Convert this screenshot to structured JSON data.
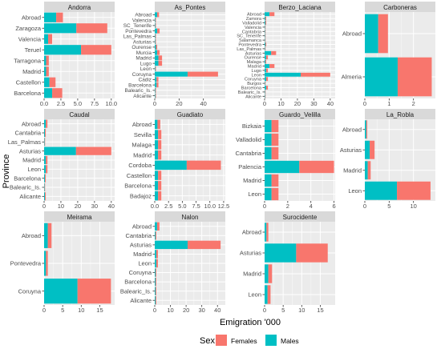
{
  "colors": {
    "females": "#F8766D",
    "males": "#00BFC4",
    "panel_bg": "#EBEBEB",
    "strip_bg": "#D9D9D9",
    "grid": "#FFFFFF",
    "text": "#4D4D4D"
  },
  "axis_labels": {
    "x": "Emigration '000",
    "y": "Province"
  },
  "legend": {
    "title": "Sex",
    "items": [
      {
        "name": "Females",
        "color": "#F8766D"
      },
      {
        "name": "Males",
        "color": "#00BFC4"
      }
    ]
  },
  "chart_data": [
    {
      "type": "bar",
      "orientation": "horizontal",
      "stacked": true,
      "title": "Andorra",
      "xlim": [
        0,
        10.5
      ],
      "xticks": [
        0,
        2.5,
        5,
        7.5,
        10
      ],
      "xtick_labels": [
        "0.0",
        "2.5",
        "5.0",
        "7.5",
        "10.0"
      ],
      "categories": [
        "Abroad",
        "Zaragoza",
        "Valencia",
        "Teruel",
        "Tarragona",
        "Madrid",
        "Castellon",
        "Barcelona"
      ],
      "series": [
        {
          "name": "Males",
          "values": [
            1.8,
            4.8,
            0.6,
            5.5,
            0.3,
            0.3,
            0.8,
            1.2
          ]
        },
        {
          "name": "Females",
          "values": [
            1.0,
            4.6,
            0.6,
            4.5,
            0.4,
            0.4,
            0.9,
            1.5
          ]
        }
      ]
    },
    {
      "type": "bar",
      "orientation": "horizontal",
      "stacked": true,
      "title": "As_Pontes",
      "xlim": [
        0,
        58
      ],
      "xticks": [
        0,
        20,
        40
      ],
      "xtick_labels": [
        "0",
        "20",
        "40"
      ],
      "categories": [
        "Abroad",
        "Valencia",
        "SC_Tenerife",
        "Pontevedra",
        "Las_Palmas",
        "Asturias",
        "Ourense",
        "Murcia",
        "Madrid",
        "Lugo",
        "Leon",
        "Coruyna",
        "Cadiz",
        "Barcelona",
        "Balearic_Is.",
        "Alicante"
      ],
      "series": [
        {
          "name": "Males",
          "values": [
            2,
            0.5,
            0.5,
            2,
            0.5,
            0.5,
            1,
            2,
            3,
            3,
            0.5,
            27,
            1.5,
            1.5,
            0.5,
            0.5
          ]
        },
        {
          "name": "Females",
          "values": [
            1.5,
            0.5,
            0.5,
            2,
            0.5,
            0.5,
            1,
            2,
            3,
            3,
            0.5,
            25,
            1.5,
            1.5,
            0.5,
            0.5
          ]
        }
      ]
    },
    {
      "type": "bar",
      "orientation": "horizontal",
      "stacked": true,
      "title": "Berzo_Laciana",
      "xlim": [
        0,
        43
      ],
      "xticks": [
        0,
        10,
        20,
        30,
        40
      ],
      "xtick_labels": [
        "0",
        "10",
        "20",
        "30",
        "40"
      ],
      "categories": [
        "Abroad",
        "Zamora",
        "Valladolid",
        "Valencia",
        "Cantabria",
        "SC_Tenerife",
        "Salamanca",
        "Pontevedra",
        "Las_Palmas",
        "Asturias",
        "Ourense",
        "Malaga",
        "Madrid",
        "Lugo",
        "Leon",
        "Coruyna",
        "Burgos",
        "Barcelona",
        "Balearic_Is.",
        "Alicante"
      ],
      "series": [
        {
          "name": "Males",
          "values": [
            3,
            0.5,
            0.5,
            0.3,
            0.3,
            0.3,
            0.3,
            0.5,
            0.3,
            4,
            1,
            0.5,
            3,
            1,
            22,
            1,
            0.3,
            1,
            0.3,
            0.3
          ]
        },
        {
          "name": "Females",
          "values": [
            3,
            0.5,
            0.5,
            0.3,
            0.3,
            0.3,
            0.3,
            0.5,
            0.3,
            3,
            1,
            0.5,
            3,
            1,
            18,
            1,
            0.3,
            1,
            0.3,
            0.3
          ]
        }
      ]
    },
    {
      "type": "bar",
      "orientation": "horizontal",
      "stacked": true,
      "title": "Carboneras",
      "xlim": [
        0,
        2.9
      ],
      "xticks": [
        0,
        1,
        2
      ],
      "xtick_labels": [
        "0",
        "1",
        "2"
      ],
      "categories": [
        "Abroad",
        "Almeria"
      ],
      "series": [
        {
          "name": "Males",
          "values": [
            0.55,
            1.35
          ]
        },
        {
          "name": "Females",
          "values": [
            0.4,
            1.4
          ]
        }
      ]
    },
    {
      "type": "bar",
      "orientation": "horizontal",
      "stacked": true,
      "title": "Caudal",
      "xlim": [
        0,
        42
      ],
      "xticks": [
        0,
        10,
        20,
        30,
        40
      ],
      "xtick_labels": [
        "0",
        "10",
        "20",
        "30",
        "40"
      ],
      "categories": [
        "Abroad",
        "Cantabria",
        "Las_Palmas",
        "Asturias",
        "Madrid",
        "Leon",
        "Barcelona",
        "Balearic_Is.",
        "Alicante"
      ],
      "series": [
        {
          "name": "Males",
          "values": [
            1,
            0.5,
            0.3,
            19,
            1,
            1,
            0.5,
            0.3,
            0.5
          ]
        },
        {
          "name": "Females",
          "values": [
            1,
            0.5,
            0.3,
            21,
            1,
            1,
            0.5,
            0.3,
            0.5
          ]
        }
      ]
    },
    {
      "type": "bar",
      "orientation": "horizontal",
      "stacked": true,
      "title": "Guadiato",
      "xlim": [
        0,
        12.8
      ],
      "xticks": [
        0,
        2.5,
        5,
        7.5,
        10,
        12.5
      ],
      "xtick_labels": [
        "0.0",
        "2.5",
        "5.0",
        "7.5",
        "10.0",
        "12.5"
      ],
      "categories": [
        "Abroad",
        "Sevilla",
        "Malaga",
        "Madrid",
        "Cordoba",
        "Castellon",
        "Barcelona",
        "Badajoz"
      ],
      "series": [
        {
          "name": "Males",
          "values": [
            0.5,
            0.6,
            0.6,
            0.6,
            5.8,
            0.6,
            0.6,
            0.6
          ]
        },
        {
          "name": "Females",
          "values": [
            0.5,
            0.6,
            0.6,
            0.6,
            6.2,
            0.6,
            0.6,
            0.6
          ]
        }
      ]
    },
    {
      "type": "bar",
      "orientation": "horizontal",
      "stacked": true,
      "title": "Guardo_Velilla",
      "xlim": [
        0,
        6.1
      ],
      "xticks": [
        0,
        2,
        4,
        6
      ],
      "xtick_labels": [
        "0",
        "2",
        "4",
        "6"
      ],
      "categories": [
        "Bizkaia",
        "Valladolid",
        "Cantabria",
        "Palencia",
        "Madrid",
        "Leon"
      ],
      "series": [
        {
          "name": "Males",
          "values": [
            0.6,
            0.6,
            0.6,
            3.0,
            0.6,
            0.6
          ]
        },
        {
          "name": "Females",
          "values": [
            0.6,
            0.6,
            0.6,
            3.0,
            0.6,
            0.6
          ]
        }
      ]
    },
    {
      "type": "bar",
      "orientation": "horizontal",
      "stacked": true,
      "title": "La_Robla",
      "xlim": [
        0,
        14.5
      ],
      "xticks": [
        0,
        5,
        10
      ],
      "xtick_labels": [
        "0",
        "5",
        "10"
      ],
      "categories": [
        "Abroad",
        "Asturias",
        "Madrid",
        "Leon"
      ],
      "series": [
        {
          "name": "Males",
          "values": [
            0.3,
            1,
            0.6,
            6.6
          ]
        },
        {
          "name": "Females",
          "values": [
            0.2,
            1,
            0.6,
            6.9
          ]
        }
      ]
    },
    {
      "type": "bar",
      "orientation": "horizontal",
      "stacked": true,
      "title": "Meirama",
      "xlim": [
        0,
        19
      ],
      "xticks": [
        0,
        5,
        10,
        15
      ],
      "xtick_labels": [
        "0",
        "5",
        "10",
        "15"
      ],
      "categories": [
        "Abroad",
        "Pontevedra",
        "Coruyna"
      ],
      "series": [
        {
          "name": "Males",
          "values": [
            1,
            0.5,
            9
          ]
        },
        {
          "name": "Females",
          "values": [
            1,
            0.5,
            9
          ]
        }
      ]
    },
    {
      "type": "bar",
      "orientation": "horizontal",
      "stacked": true,
      "title": "Nalon",
      "xlim": [
        0,
        45
      ],
      "xticks": [
        0,
        10,
        20,
        30,
        40
      ],
      "xtick_labels": [
        "0",
        "10",
        "20",
        "30",
        "40"
      ],
      "categories": [
        "Abroad",
        "Cantabria",
        "Asturias",
        "Madrid",
        "Leon",
        "Coruyna",
        "Barcelona",
        "Balearic_Is.",
        "Alicante"
      ],
      "series": [
        {
          "name": "Males",
          "values": [
            1.5,
            0.5,
            21,
            1,
            1,
            0.5,
            0.5,
            0.5,
            0.5
          ]
        },
        {
          "name": "Females",
          "values": [
            1.5,
            0.5,
            21,
            1,
            1,
            0.5,
            0.5,
            0.5,
            0.5
          ]
        }
      ]
    },
    {
      "type": "bar",
      "orientation": "horizontal",
      "stacked": true,
      "title": "Surocidente",
      "xlim": [
        0,
        19
      ],
      "xticks": [
        0,
        5,
        10,
        15
      ],
      "xtick_labels": [
        "0",
        "5",
        "10",
        "15"
      ],
      "categories": [
        "Abroad",
        "Asturias",
        "Madrid",
        "Leon"
      ],
      "series": [
        {
          "name": "Males",
          "values": [
            0.5,
            8.5,
            1,
            0.8
          ]
        },
        {
          "name": "Females",
          "values": [
            0.5,
            8.5,
            1,
            0.8
          ]
        }
      ]
    }
  ]
}
